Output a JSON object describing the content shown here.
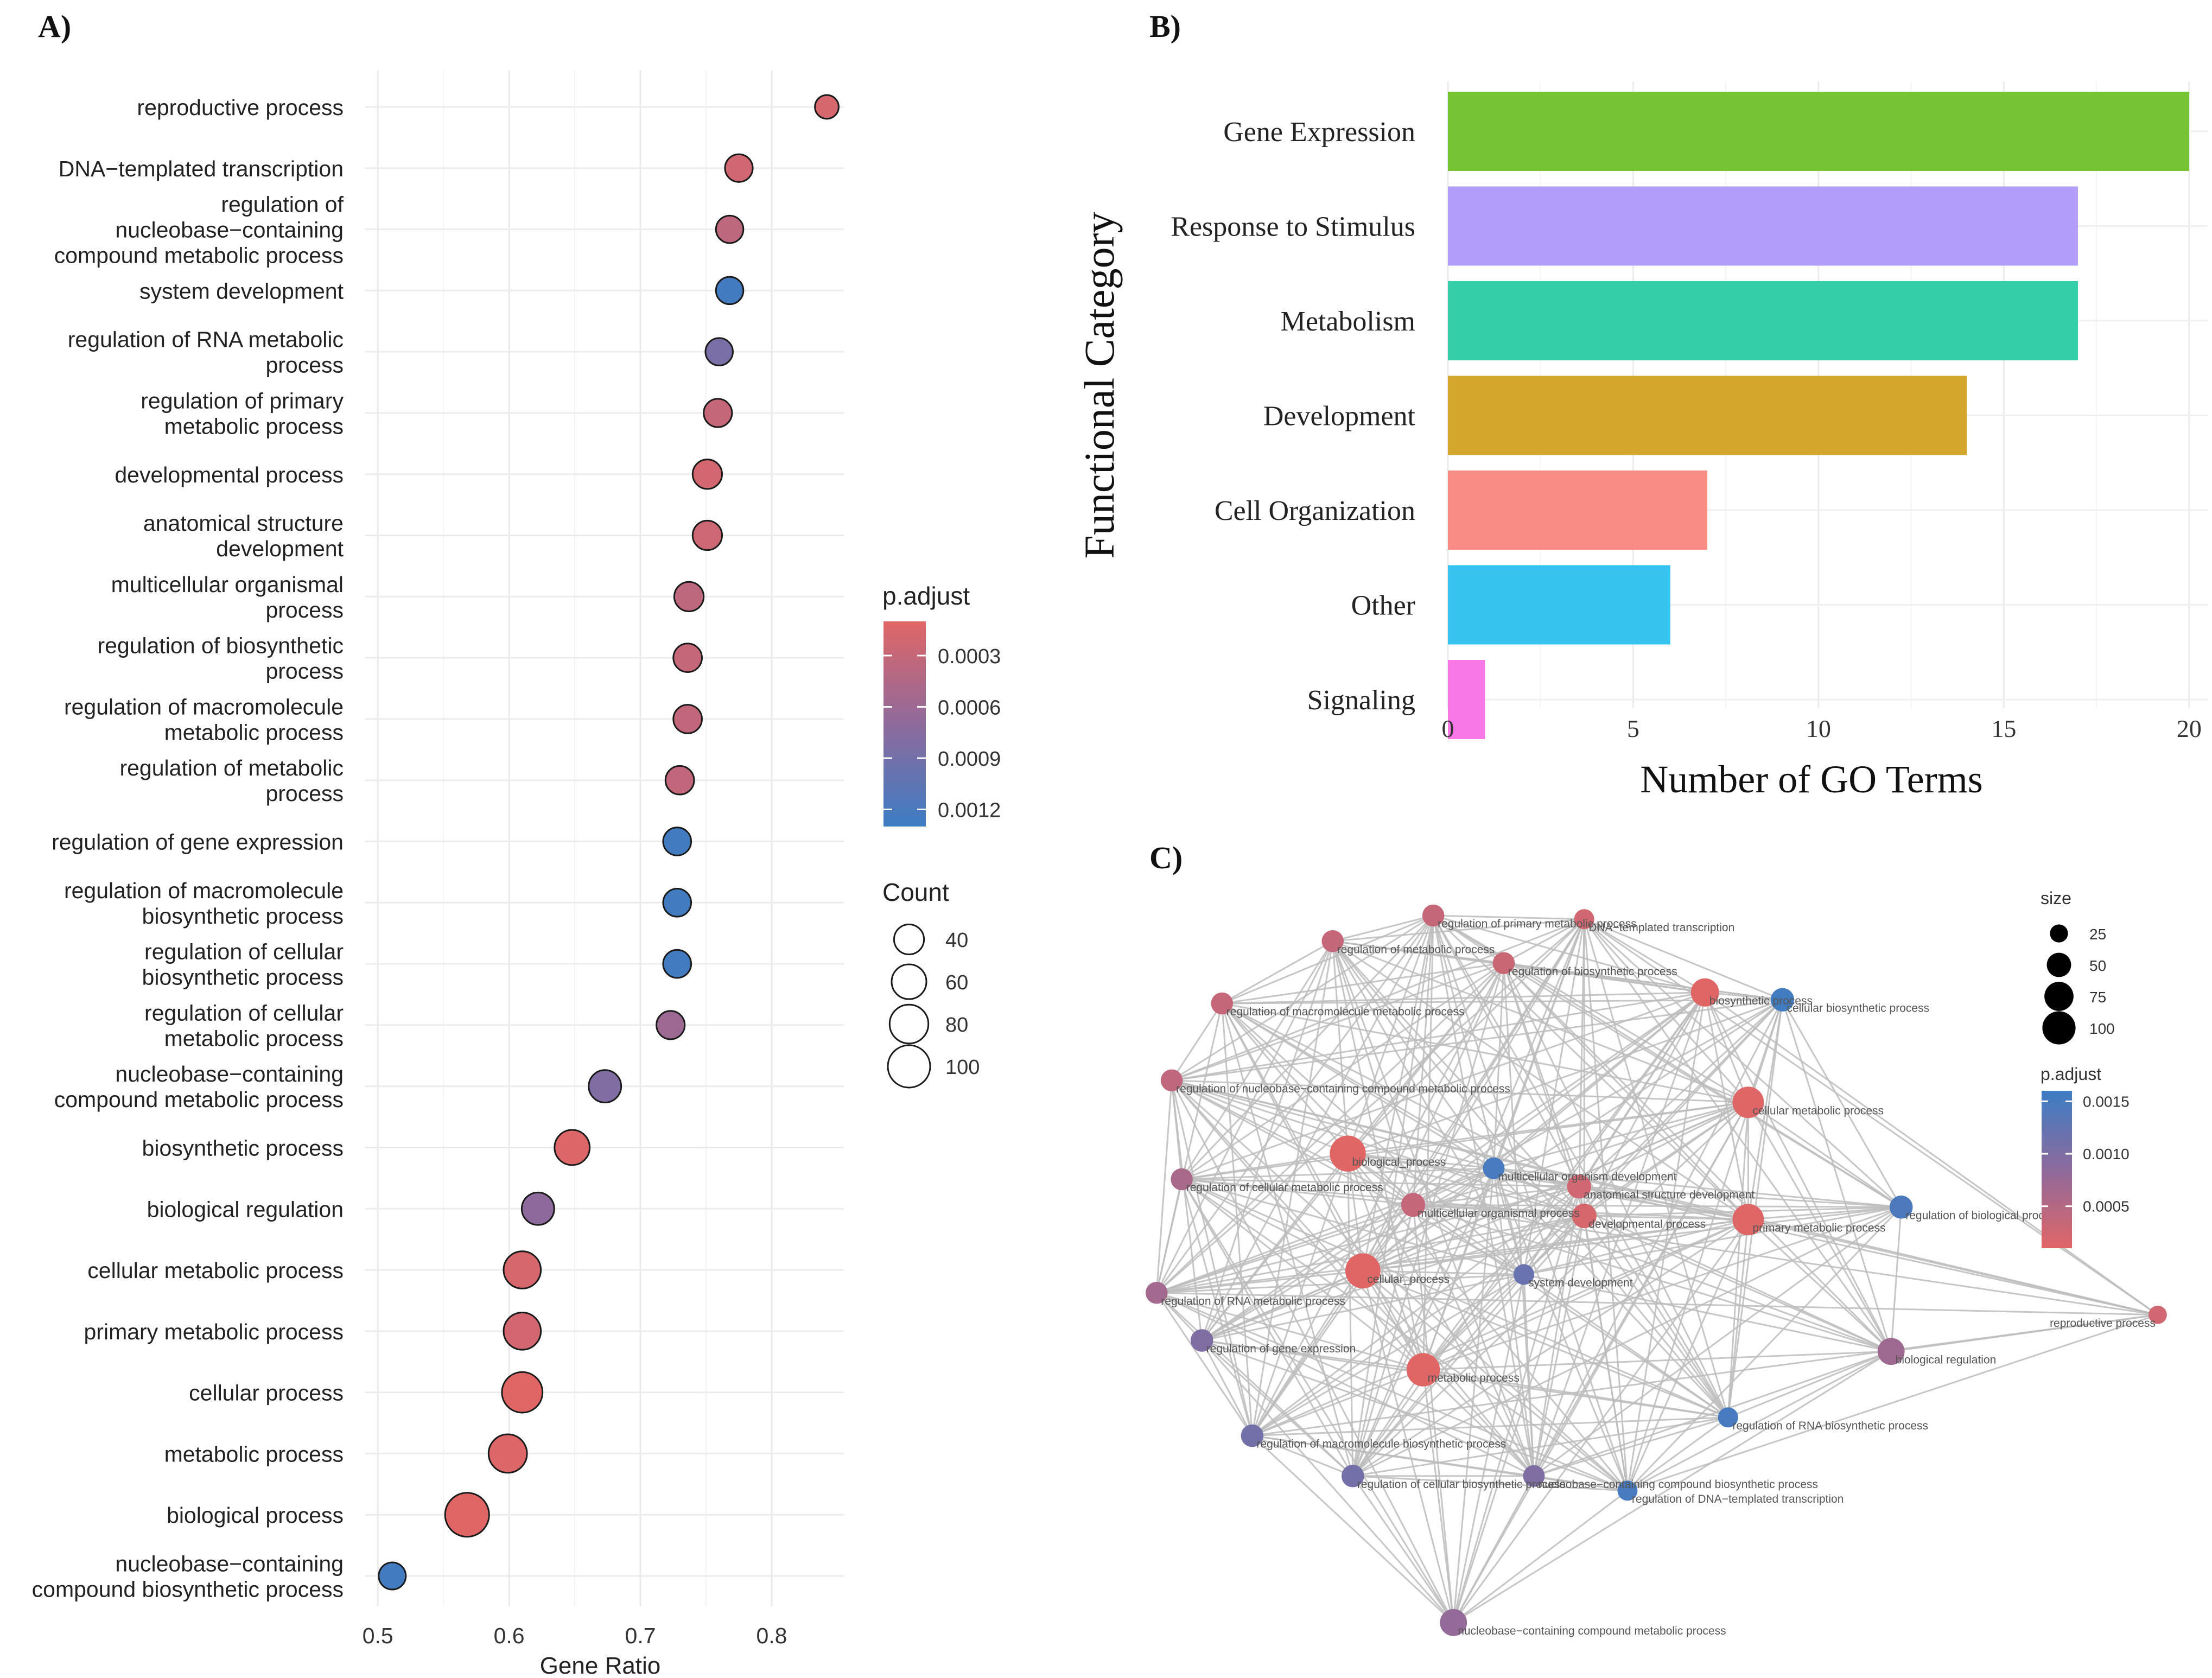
{
  "panel_labels": {
    "a": "A)",
    "b": "B)",
    "c": "C)"
  },
  "chart_data": [
    {
      "panel": "A",
      "type": "scatter",
      "title": "",
      "xlabel": "Gene Ratio",
      "ylabel": "",
      "xlim": [
        0.49,
        0.855
      ],
      "xticks": [
        0.5,
        0.6,
        0.7,
        0.8
      ],
      "grid": true,
      "terms": [
        {
          "lines": [
            "reproductive process"
          ],
          "ratio": 0.842,
          "count": 20,
          "p": 0.00018
        },
        {
          "lines": [
            "DNA−templated transcription"
          ],
          "ratio": 0.775,
          "count": 32,
          "p": 0.00022
        },
        {
          "lines": [
            "regulation of",
            "nucleobase−containing",
            "compound metabolic process"
          ],
          "ratio": 0.768,
          "count": 31,
          "p": 0.00035
        },
        {
          "lines": [
            "system development"
          ],
          "ratio": 0.768,
          "count": 31,
          "p": 0.00125
        },
        {
          "lines": [
            "regulation of RNA metabolic",
            "process"
          ],
          "ratio": 0.76,
          "count": 31,
          "p": 0.00085
        },
        {
          "lines": [
            "regulation of primary",
            "metabolic process"
          ],
          "ratio": 0.759,
          "count": 34,
          "p": 0.0003
        },
        {
          "lines": [
            "developmental process"
          ],
          "ratio": 0.751,
          "count": 38,
          "p": 0.0002
        },
        {
          "lines": [
            "anatomical structure",
            "development"
          ],
          "ratio": 0.751,
          "count": 38,
          "p": 0.00025
        },
        {
          "lines": [
            "multicellular organismal",
            "process"
          ],
          "ratio": 0.737,
          "count": 38,
          "p": 0.00035
        },
        {
          "lines": [
            "regulation of biosynthetic",
            "process"
          ],
          "ratio": 0.736,
          "count": 35,
          "p": 0.0003
        },
        {
          "lines": [
            "regulation of macromolecule",
            "metabolic process"
          ],
          "ratio": 0.736,
          "count": 35,
          "p": 0.00032
        },
        {
          "lines": [
            "regulation of metabolic",
            "process"
          ],
          "ratio": 0.73,
          "count": 35,
          "p": 0.00032
        },
        {
          "lines": [
            "regulation of gene expression"
          ],
          "ratio": 0.728,
          "count": 33,
          "p": 0.00125
        },
        {
          "lines": [
            "regulation of macromolecule",
            "biosynthetic process"
          ],
          "ratio": 0.728,
          "count": 33,
          "p": 0.00125
        },
        {
          "lines": [
            "regulation of cellular",
            "biosynthetic process"
          ],
          "ratio": 0.728,
          "count": 33,
          "p": 0.00125
        },
        {
          "lines": [
            "regulation of cellular",
            "metabolic process"
          ],
          "ratio": 0.723,
          "count": 34,
          "p": 0.0006
        },
        {
          "lines": [
            "nucleobase−containing",
            "compound metabolic process"
          ],
          "ratio": 0.673,
          "count": 50,
          "p": 0.0008
        },
        {
          "lines": [
            "biosynthetic process"
          ],
          "ratio": 0.648,
          "count": 62,
          "p": 0.00012
        },
        {
          "lines": [
            "biological regulation"
          ],
          "ratio": 0.622,
          "count": 50,
          "p": 0.0007
        },
        {
          "lines": [
            "cellular metabolic process"
          ],
          "ratio": 0.61,
          "count": 72,
          "p": 0.00018
        },
        {
          "lines": [
            "primary metabolic process"
          ],
          "ratio": 0.61,
          "count": 72,
          "p": 0.0002
        },
        {
          "lines": [
            "cellular process"
          ],
          "ratio": 0.61,
          "count": 90,
          "p": 0.0001
        },
        {
          "lines": [
            "metabolic process"
          ],
          "ratio": 0.599,
          "count": 78,
          "p": 0.00012
        },
        {
          "lines": [
            "biological process"
          ],
          "ratio": 0.568,
          "count": 110,
          "p": 0.0001
        },
        {
          "lines": [
            "nucleobase−containing",
            "compound biosynthetic process"
          ],
          "ratio": 0.511,
          "count": 30,
          "p": 0.00125
        }
      ],
      "legend_p": {
        "title": "p.adjust",
        "ticks": [
          "0.0003",
          "0.0006",
          "0.0009",
          "0.0012"
        ],
        "tick_values": [
          0.0003,
          0.0006,
          0.0009,
          0.0012
        ],
        "range": [
          0.0001,
          0.0013
        ],
        "colors": {
          "low": "#E06666",
          "mid": "#8E6A9C",
          "high": "#3C7DC4"
        }
      },
      "legend_count": {
        "title": "Count",
        "values": [
          40,
          60,
          80,
          100
        ],
        "labels": [
          "40",
          "60",
          "80",
          "100"
        ]
      }
    },
    {
      "panel": "B",
      "type": "bar",
      "orientation": "horizontal",
      "title": "",
      "xlabel": "Number of GO Terms",
      "ylabel": "Functional Category",
      "xlim": [
        0,
        20.5
      ],
      "xticks": [
        "0",
        "5",
        "10",
        "15",
        "20"
      ],
      "categories": [
        "Gene Expression",
        "Response to Stimulus",
        "Metabolism",
        "Development",
        "Cell Organization",
        "Other",
        "Signaling"
      ],
      "values": [
        20,
        17,
        17,
        14,
        7,
        6,
        1
      ],
      "colors": [
        "#75C332",
        "#B29DFA",
        "#34CFA9",
        "#D4A72C",
        "#F98C85",
        "#36C3F0",
        "#F877E6"
      ]
    },
    {
      "panel": "C",
      "type": "network",
      "title": "",
      "nodes": [
        {
          "label": "regulation of primary metabolic process",
          "x": 0.28,
          "y": 0.02,
          "size": 31,
          "p": 0.00035
        },
        {
          "label": "DNA−templated transcription",
          "x": 0.43,
          "y": 0.025,
          "size": 25,
          "p": 0.00025
        },
        {
          "label": "regulation of metabolic process",
          "x": 0.18,
          "y": 0.055,
          "size": 31,
          "p": 0.00035
        },
        {
          "label": "regulation of biosynthetic process",
          "x": 0.35,
          "y": 0.085,
          "size": 31,
          "p": 0.0003
        },
        {
          "label": "biosynthetic process",
          "x": 0.55,
          "y": 0.125,
          "size": 55,
          "p": 0.0001
        },
        {
          "label": "cellular biosynthetic process",
          "x": 0.627,
          "y": 0.135,
          "size": 36,
          "p": 0.00155
        },
        {
          "label": "regulation of macromolecule metabolic process",
          "x": 0.07,
          "y": 0.14,
          "size": 31,
          "p": 0.00035
        },
        {
          "label": "regulation of nucleobase−containing compound metabolic process",
          "x": 0.02,
          "y": 0.245,
          "size": 31,
          "p": 0.0004
        },
        {
          "label": "cellular metabolic process",
          "x": 0.593,
          "y": 0.275,
          "size": 70,
          "p": 0.00012
        },
        {
          "label": "biological_process",
          "x": 0.195,
          "y": 0.345,
          "size": 95,
          "p": 0.0001
        },
        {
          "label": "multicellular organism development",
          "x": 0.34,
          "y": 0.365,
          "size": 30,
          "p": 0.0015
        },
        {
          "label": "regulation of cellular metabolic process",
          "x": 0.03,
          "y": 0.38,
          "size": 31,
          "p": 0.0006
        },
        {
          "label": "anatomical structure development",
          "x": 0.425,
          "y": 0.39,
          "size": 38,
          "p": 0.00025
        },
        {
          "label": "multicellular organismal process",
          "x": 0.26,
          "y": 0.415,
          "size": 38,
          "p": 0.00035
        },
        {
          "label": "regulation of biological process",
          "x": 0.745,
          "y": 0.418,
          "size": 35,
          "p": 0.00145
        },
        {
          "label": "developmental process",
          "x": 0.43,
          "y": 0.43,
          "size": 40,
          "p": 0.0002
        },
        {
          "label": "primary metabolic process",
          "x": 0.593,
          "y": 0.435,
          "size": 70,
          "p": 0.00012
        },
        {
          "label": "cellular_process",
          "x": 0.21,
          "y": 0.505,
          "size": 90,
          "p": 0.0001
        },
        {
          "label": "system development",
          "x": 0.37,
          "y": 0.51,
          "size": 27,
          "p": 0.0012
        },
        {
          "label": "regulation of RNA metabolic process",
          "x": 0.005,
          "y": 0.535,
          "size": 31,
          "p": 0.00065
        },
        {
          "label": "reproductive process",
          "x": 1.0,
          "y": 0.565,
          "size": 20,
          "p": 0.00025
        },
        {
          "label": "regulation of gene expression",
          "x": 0.05,
          "y": 0.6,
          "size": 33,
          "p": 0.001
        },
        {
          "label": "biological regulation",
          "x": 0.735,
          "y": 0.615,
          "size": 50,
          "p": 0.0007
        },
        {
          "label": "metabolic process",
          "x": 0.27,
          "y": 0.64,
          "size": 80,
          "p": 0.0001
        },
        {
          "label": "regulation of RNA biosynthetic process",
          "x": 0.573,
          "y": 0.705,
          "size": 25,
          "p": 0.0015
        },
        {
          "label": "regulation of macromolecule biosynthetic process",
          "x": 0.1,
          "y": 0.73,
          "size": 33,
          "p": 0.0011
        },
        {
          "label": "nucleobase−containing compound biosynthetic process",
          "x": 0.38,
          "y": 0.785,
          "size": 30,
          "p": 0.001
        },
        {
          "label": "regulation of cellular biosynthetic process",
          "x": 0.2,
          "y": 0.785,
          "size": 33,
          "p": 0.0011
        },
        {
          "label": "regulation of DNA−templated transcription",
          "x": 0.473,
          "y": 0.805,
          "size": 25,
          "p": 0.0015
        },
        {
          "label": "nucleobase−containing compound metabolic process",
          "x": 0.3,
          "y": 0.985,
          "size": 50,
          "p": 0.0008
        }
      ],
      "legend_size": {
        "title": "size",
        "values": [
          25,
          50,
          75,
          100
        ],
        "labels": [
          "25",
          "50",
          "75",
          "100"
        ]
      },
      "legend_p": {
        "title": "p.adjust",
        "ticks": [
          "0.0015",
          "0.0010",
          "0.0005"
        ],
        "tick_values": [
          0.0015,
          0.001,
          0.0005
        ],
        "range": [
          0.0001,
          0.0016
        ],
        "colors": {
          "low": "#E06666",
          "mid": "#8E6A9C",
          "high": "#3C7DC4"
        }
      }
    }
  ]
}
